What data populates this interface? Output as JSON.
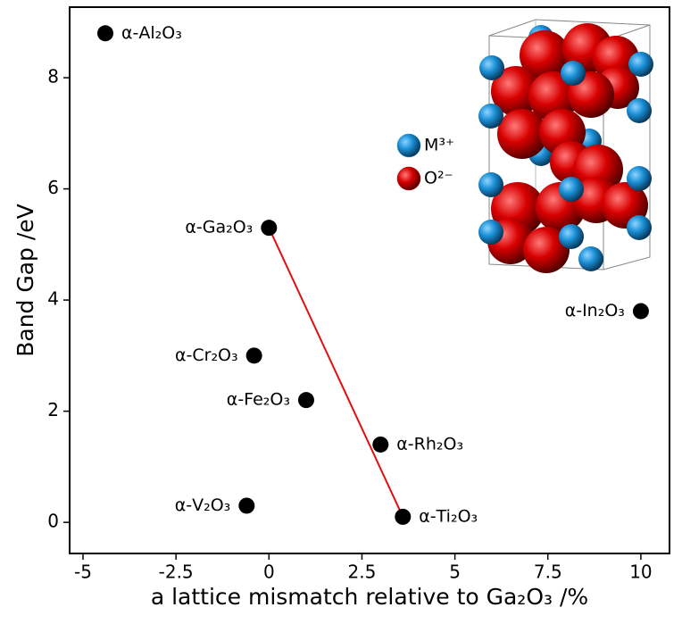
{
  "chart_data": {
    "type": "scatter",
    "xlabel": "a lattice mismatch relative to Ga₂O₃ /%",
    "ylabel": "Band Gap /eV",
    "x": [
      -4.4,
      0.0,
      -0.4,
      1.0,
      3.0,
      -0.6,
      3.6,
      10.0
    ],
    "values": [
      8.8,
      5.3,
      3.0,
      2.2,
      1.4,
      0.3,
      0.1,
      3.8
    ],
    "point_labels": [
      "α-Al₂O₃",
      "α-Ga₂O₃",
      "α-Cr₂O₃",
      "α-Fe₂O₃",
      "α-Rh₂O₃",
      "α-V₂O₃",
      "α-Ti₂O₃",
      "α-In₂O₃"
    ],
    "color": "#000000",
    "trend_line": {
      "x": [
        0.0,
        3.6
      ],
      "y": [
        5.3,
        0.1
      ],
      "color": "#e01010"
    },
    "legend_items": [
      {
        "name": "M³⁺",
        "color": "#1a8fd6"
      },
      {
        "name": "O²⁻",
        "color": "#d80000"
      }
    ],
    "xlim": [
      -5.36,
      10.77
    ],
    "ylim": [
      -0.56,
      9.27
    ],
    "xticks": [
      -5,
      -2.5,
      0,
      2.5,
      5,
      7.5,
      10
    ],
    "yticks": [
      0,
      2,
      4,
      6,
      8
    ],
    "grid": false
  }
}
